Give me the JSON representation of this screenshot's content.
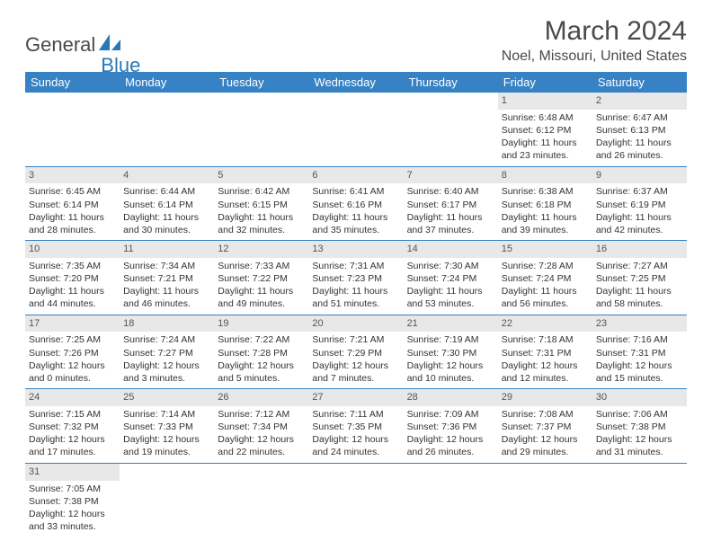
{
  "logo": {
    "part1": "General",
    "part2": "Blue"
  },
  "title": "March 2024",
  "location": "Noel, Missouri, United States",
  "colors": {
    "header_bg": "#3682c4",
    "header_text": "#ffffff",
    "daynum_bg": "#e8e8e8",
    "text": "#333333",
    "accent": "#2878b8"
  },
  "daysOfWeek": [
    "Sunday",
    "Monday",
    "Tuesday",
    "Wednesday",
    "Thursday",
    "Friday",
    "Saturday"
  ],
  "weeks": [
    [
      null,
      null,
      null,
      null,
      null,
      {
        "n": "1",
        "sr": "Sunrise: 6:48 AM",
        "ss": "Sunset: 6:12 PM",
        "d1": "Daylight: 11 hours",
        "d2": "and 23 minutes."
      },
      {
        "n": "2",
        "sr": "Sunrise: 6:47 AM",
        "ss": "Sunset: 6:13 PM",
        "d1": "Daylight: 11 hours",
        "d2": "and 26 minutes."
      }
    ],
    [
      {
        "n": "3",
        "sr": "Sunrise: 6:45 AM",
        "ss": "Sunset: 6:14 PM",
        "d1": "Daylight: 11 hours",
        "d2": "and 28 minutes."
      },
      {
        "n": "4",
        "sr": "Sunrise: 6:44 AM",
        "ss": "Sunset: 6:14 PM",
        "d1": "Daylight: 11 hours",
        "d2": "and 30 minutes."
      },
      {
        "n": "5",
        "sr": "Sunrise: 6:42 AM",
        "ss": "Sunset: 6:15 PM",
        "d1": "Daylight: 11 hours",
        "d2": "and 32 minutes."
      },
      {
        "n": "6",
        "sr": "Sunrise: 6:41 AM",
        "ss": "Sunset: 6:16 PM",
        "d1": "Daylight: 11 hours",
        "d2": "and 35 minutes."
      },
      {
        "n": "7",
        "sr": "Sunrise: 6:40 AM",
        "ss": "Sunset: 6:17 PM",
        "d1": "Daylight: 11 hours",
        "d2": "and 37 minutes."
      },
      {
        "n": "8",
        "sr": "Sunrise: 6:38 AM",
        "ss": "Sunset: 6:18 PM",
        "d1": "Daylight: 11 hours",
        "d2": "and 39 minutes."
      },
      {
        "n": "9",
        "sr": "Sunrise: 6:37 AM",
        "ss": "Sunset: 6:19 PM",
        "d1": "Daylight: 11 hours",
        "d2": "and 42 minutes."
      }
    ],
    [
      {
        "n": "10",
        "sr": "Sunrise: 7:35 AM",
        "ss": "Sunset: 7:20 PM",
        "d1": "Daylight: 11 hours",
        "d2": "and 44 minutes."
      },
      {
        "n": "11",
        "sr": "Sunrise: 7:34 AM",
        "ss": "Sunset: 7:21 PM",
        "d1": "Daylight: 11 hours",
        "d2": "and 46 minutes."
      },
      {
        "n": "12",
        "sr": "Sunrise: 7:33 AM",
        "ss": "Sunset: 7:22 PM",
        "d1": "Daylight: 11 hours",
        "d2": "and 49 minutes."
      },
      {
        "n": "13",
        "sr": "Sunrise: 7:31 AM",
        "ss": "Sunset: 7:23 PM",
        "d1": "Daylight: 11 hours",
        "d2": "and 51 minutes."
      },
      {
        "n": "14",
        "sr": "Sunrise: 7:30 AM",
        "ss": "Sunset: 7:24 PM",
        "d1": "Daylight: 11 hours",
        "d2": "and 53 minutes."
      },
      {
        "n": "15",
        "sr": "Sunrise: 7:28 AM",
        "ss": "Sunset: 7:24 PM",
        "d1": "Daylight: 11 hours",
        "d2": "and 56 minutes."
      },
      {
        "n": "16",
        "sr": "Sunrise: 7:27 AM",
        "ss": "Sunset: 7:25 PM",
        "d1": "Daylight: 11 hours",
        "d2": "and 58 minutes."
      }
    ],
    [
      {
        "n": "17",
        "sr": "Sunrise: 7:25 AM",
        "ss": "Sunset: 7:26 PM",
        "d1": "Daylight: 12 hours",
        "d2": "and 0 minutes."
      },
      {
        "n": "18",
        "sr": "Sunrise: 7:24 AM",
        "ss": "Sunset: 7:27 PM",
        "d1": "Daylight: 12 hours",
        "d2": "and 3 minutes."
      },
      {
        "n": "19",
        "sr": "Sunrise: 7:22 AM",
        "ss": "Sunset: 7:28 PM",
        "d1": "Daylight: 12 hours",
        "d2": "and 5 minutes."
      },
      {
        "n": "20",
        "sr": "Sunrise: 7:21 AM",
        "ss": "Sunset: 7:29 PM",
        "d1": "Daylight: 12 hours",
        "d2": "and 7 minutes."
      },
      {
        "n": "21",
        "sr": "Sunrise: 7:19 AM",
        "ss": "Sunset: 7:30 PM",
        "d1": "Daylight: 12 hours",
        "d2": "and 10 minutes."
      },
      {
        "n": "22",
        "sr": "Sunrise: 7:18 AM",
        "ss": "Sunset: 7:31 PM",
        "d1": "Daylight: 12 hours",
        "d2": "and 12 minutes."
      },
      {
        "n": "23",
        "sr": "Sunrise: 7:16 AM",
        "ss": "Sunset: 7:31 PM",
        "d1": "Daylight: 12 hours",
        "d2": "and 15 minutes."
      }
    ],
    [
      {
        "n": "24",
        "sr": "Sunrise: 7:15 AM",
        "ss": "Sunset: 7:32 PM",
        "d1": "Daylight: 12 hours",
        "d2": "and 17 minutes."
      },
      {
        "n": "25",
        "sr": "Sunrise: 7:14 AM",
        "ss": "Sunset: 7:33 PM",
        "d1": "Daylight: 12 hours",
        "d2": "and 19 minutes."
      },
      {
        "n": "26",
        "sr": "Sunrise: 7:12 AM",
        "ss": "Sunset: 7:34 PM",
        "d1": "Daylight: 12 hours",
        "d2": "and 22 minutes."
      },
      {
        "n": "27",
        "sr": "Sunrise: 7:11 AM",
        "ss": "Sunset: 7:35 PM",
        "d1": "Daylight: 12 hours",
        "d2": "and 24 minutes."
      },
      {
        "n": "28",
        "sr": "Sunrise: 7:09 AM",
        "ss": "Sunset: 7:36 PM",
        "d1": "Daylight: 12 hours",
        "d2": "and 26 minutes."
      },
      {
        "n": "29",
        "sr": "Sunrise: 7:08 AM",
        "ss": "Sunset: 7:37 PM",
        "d1": "Daylight: 12 hours",
        "d2": "and 29 minutes."
      },
      {
        "n": "30",
        "sr": "Sunrise: 7:06 AM",
        "ss": "Sunset: 7:38 PM",
        "d1": "Daylight: 12 hours",
        "d2": "and 31 minutes."
      }
    ],
    [
      {
        "n": "31",
        "sr": "Sunrise: 7:05 AM",
        "ss": "Sunset: 7:38 PM",
        "d1": "Daylight: 12 hours",
        "d2": "and 33 minutes."
      },
      null,
      null,
      null,
      null,
      null,
      null
    ]
  ]
}
